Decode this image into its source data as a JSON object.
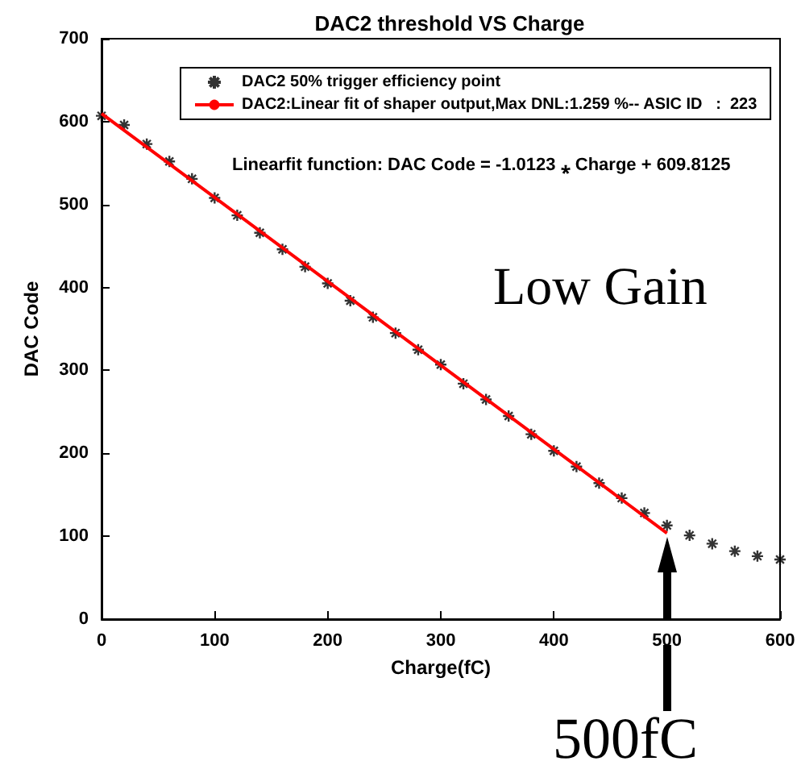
{
  "chart_data": {
    "type": "scatter",
    "title": "DAC2 threshold VS Charge",
    "xlabel": "Charge(fC)",
    "ylabel": "DAC Code",
    "xlim": [
      0,
      600
    ],
    "xticks": [
      0,
      100,
      200,
      300,
      400,
      500,
      600
    ],
    "ylim": [
      0,
      700
    ],
    "yticks": [
      0,
      100,
      200,
      300,
      400,
      500,
      600,
      700
    ],
    "grid": false,
    "legend": "top",
    "annotations": [
      "Linearfit function: DAC Code = -1.0123 ⁎ Charge + 609.8125",
      "Low Gain",
      "500fC"
    ],
    "series": [
      {
        "name": "DAC2 50% trigger efficiency point",
        "marker": "cross",
        "color": "#000000",
        "x": [
          0,
          20,
          40,
          60,
          80,
          100,
          120,
          140,
          160,
          180,
          200,
          220,
          240,
          260,
          280,
          300,
          320,
          340,
          360,
          380,
          400,
          420,
          440,
          460,
          480,
          500,
          520,
          540,
          560,
          580,
          600
        ],
        "values": [
          607,
          596,
          573,
          552,
          531,
          508,
          487,
          466,
          446,
          425,
          405,
          384,
          364,
          345,
          325,
          307,
          284,
          265,
          245,
          223,
          203,
          184,
          164,
          146,
          128,
          113,
          101,
          91,
          82,
          76,
          72
        ]
      },
      {
        "name": "DAC2:Linear fit of shaper output,Max DNL:1.259 %-- ASIC ID   :  223",
        "type": "line",
        "marker": "none",
        "color": "#ff0000",
        "line_style": "solid",
        "x": [
          0,
          500
        ],
        "values": [
          609.8,
          103.7
        ]
      }
    ]
  }
}
